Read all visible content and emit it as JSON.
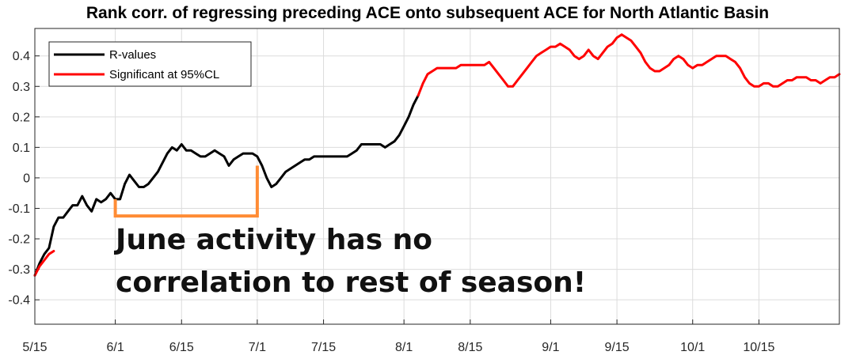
{
  "chart_data": {
    "type": "line",
    "title": "Rank corr. of regressing preceding ACE onto subsequent ACE for North Atlantic Basin",
    "xlabel": "",
    "ylabel": "",
    "ylim": [
      -0.48,
      0.49
    ],
    "xlim": [
      0,
      170
    ],
    "grid": true,
    "x_ticks": [
      {
        "x": 0,
        "label": "5/15"
      },
      {
        "x": 17,
        "label": "6/1"
      },
      {
        "x": 31,
        "label": "6/15"
      },
      {
        "x": 47,
        "label": "7/1"
      },
      {
        "x": 61,
        "label": "7/15"
      },
      {
        "x": 78,
        "label": "8/1"
      },
      {
        "x": 92,
        "label": "8/15"
      },
      {
        "x": 109,
        "label": "9/1"
      },
      {
        "x": 123,
        "label": "9/15"
      },
      {
        "x": 139,
        "label": "10/1"
      },
      {
        "x": 153,
        "label": "10/15"
      }
    ],
    "y_ticks": [
      {
        "y": 0.4,
        "label": "0.4"
      },
      {
        "y": 0.3,
        "label": "0.3"
      },
      {
        "y": 0.2,
        "label": "0.2"
      },
      {
        "y": 0.1,
        "label": "0.1"
      },
      {
        "y": 0,
        "label": "0"
      },
      {
        "y": -0.1,
        "label": "-0.1"
      },
      {
        "y": -0.2,
        "label": "-0.2"
      },
      {
        "y": -0.3,
        "label": "-0.3"
      },
      {
        "y": -0.4,
        "label": "-0.4"
      }
    ],
    "legend": {
      "position": "top-left",
      "entries": [
        {
          "label": "R-values",
          "color": "#000000"
        },
        {
          "label": "Significant at 95%CL",
          "color": "#ff0000"
        }
      ]
    },
    "series": [
      {
        "name": "R-values",
        "color": "#000000",
        "points": [
          [
            0,
            -0.32
          ],
          [
            1,
            -0.28
          ],
          [
            2,
            -0.25
          ],
          [
            3,
            -0.23
          ],
          [
            4,
            -0.16
          ],
          [
            5,
            -0.13
          ],
          [
            6,
            -0.13
          ],
          [
            7,
            -0.11
          ],
          [
            8,
            -0.09
          ],
          [
            9,
            -0.09
          ],
          [
            10,
            -0.06
          ],
          [
            11,
            -0.09
          ],
          [
            12,
            -0.11
          ],
          [
            13,
            -0.07
          ],
          [
            14,
            -0.08
          ],
          [
            15,
            -0.07
          ],
          [
            16,
            -0.05
          ],
          [
            17,
            -0.07
          ],
          [
            18,
            -0.07
          ],
          [
            19,
            -0.02
          ],
          [
            20,
            0.01
          ],
          [
            21,
            -0.01
          ],
          [
            22,
            -0.03
          ],
          [
            23,
            -0.03
          ],
          [
            24,
            -0.02
          ],
          [
            25,
            0.0
          ],
          [
            26,
            0.02
          ],
          [
            27,
            0.05
          ],
          [
            28,
            0.08
          ],
          [
            29,
            0.1
          ],
          [
            30,
            0.09
          ],
          [
            31,
            0.11
          ],
          [
            32,
            0.09
          ],
          [
            33,
            0.09
          ],
          [
            34,
            0.08
          ],
          [
            35,
            0.07
          ],
          [
            36,
            0.07
          ],
          [
            37,
            0.08
          ],
          [
            38,
            0.09
          ],
          [
            39,
            0.08
          ],
          [
            40,
            0.07
          ],
          [
            41,
            0.04
          ],
          [
            42,
            0.06
          ],
          [
            43,
            0.07
          ],
          [
            44,
            0.08
          ],
          [
            45,
            0.08
          ],
          [
            46,
            0.08
          ],
          [
            47,
            0.07
          ],
          [
            48,
            0.04
          ],
          [
            49,
            0.0
          ],
          [
            50,
            -0.03
          ],
          [
            51,
            -0.02
          ],
          [
            52,
            0.0
          ],
          [
            53,
            0.02
          ],
          [
            54,
            0.03
          ],
          [
            55,
            0.04
          ],
          [
            56,
            0.05
          ],
          [
            57,
            0.06
          ],
          [
            58,
            0.06
          ],
          [
            59,
            0.07
          ],
          [
            60,
            0.07
          ],
          [
            61,
            0.07
          ],
          [
            62,
            0.07
          ],
          [
            63,
            0.07
          ],
          [
            64,
            0.07
          ],
          [
            65,
            0.07
          ],
          [
            66,
            0.07
          ],
          [
            67,
            0.08
          ],
          [
            68,
            0.09
          ],
          [
            69,
            0.11
          ],
          [
            70,
            0.11
          ],
          [
            71,
            0.11
          ],
          [
            72,
            0.11
          ],
          [
            73,
            0.11
          ],
          [
            74,
            0.1
          ],
          [
            75,
            0.11
          ],
          [
            76,
            0.12
          ],
          [
            77,
            0.14
          ],
          [
            78,
            0.17
          ],
          [
            79,
            0.2
          ],
          [
            80,
            0.24
          ],
          [
            81,
            0.27
          ]
        ]
      },
      {
        "name": "Significant at 95%CL",
        "color": "#ff0000",
        "segments": [
          [
            [
              0,
              -0.32
            ],
            [
              1,
              -0.29
            ],
            [
              2,
              -0.27
            ],
            [
              3,
              -0.25
            ],
            [
              4,
              -0.24
            ]
          ],
          [
            [
              81,
              0.27
            ],
            [
              82,
              0.31
            ],
            [
              83,
              0.34
            ],
            [
              84,
              0.35
            ],
            [
              85,
              0.36
            ],
            [
              86,
              0.36
            ],
            [
              87,
              0.36
            ],
            [
              88,
              0.36
            ],
            [
              89,
              0.36
            ],
            [
              90,
              0.37
            ],
            [
              91,
              0.37
            ],
            [
              92,
              0.37
            ],
            [
              93,
              0.37
            ],
            [
              94,
              0.37
            ],
            [
              95,
              0.37
            ],
            [
              96,
              0.38
            ],
            [
              97,
              0.36
            ],
            [
              98,
              0.34
            ],
            [
              99,
              0.32
            ],
            [
              100,
              0.3
            ],
            [
              101,
              0.3
            ],
            [
              102,
              0.32
            ],
            [
              103,
              0.34
            ],
            [
              104,
              0.36
            ],
            [
              105,
              0.38
            ],
            [
              106,
              0.4
            ],
            [
              107,
              0.41
            ],
            [
              108,
              0.42
            ],
            [
              109,
              0.43
            ],
            [
              110,
              0.43
            ],
            [
              111,
              0.44
            ],
            [
              112,
              0.43
            ],
            [
              113,
              0.42
            ],
            [
              114,
              0.4
            ],
            [
              115,
              0.39
            ],
            [
              116,
              0.4
            ],
            [
              117,
              0.42
            ],
            [
              118,
              0.4
            ],
            [
              119,
              0.39
            ],
            [
              120,
              0.41
            ],
            [
              121,
              0.43
            ],
            [
              122,
              0.44
            ],
            [
              123,
              0.46
            ],
            [
              124,
              0.47
            ],
            [
              125,
              0.46
            ],
            [
              126,
              0.45
            ],
            [
              127,
              0.43
            ],
            [
              128,
              0.41
            ],
            [
              129,
              0.38
            ],
            [
              130,
              0.36
            ],
            [
              131,
              0.35
            ],
            [
              132,
              0.35
            ],
            [
              133,
              0.36
            ],
            [
              134,
              0.37
            ],
            [
              135,
              0.39
            ],
            [
              136,
              0.4
            ],
            [
              137,
              0.39
            ],
            [
              138,
              0.37
            ],
            [
              139,
              0.36
            ],
            [
              140,
              0.37
            ],
            [
              141,
              0.37
            ],
            [
              142,
              0.38
            ],
            [
              143,
              0.39
            ],
            [
              144,
              0.4
            ],
            [
              145,
              0.4
            ],
            [
              146,
              0.4
            ],
            [
              147,
              0.39
            ],
            [
              148,
              0.38
            ],
            [
              149,
              0.36
            ],
            [
              150,
              0.33
            ],
            [
              151,
              0.31
            ],
            [
              152,
              0.3
            ],
            [
              153,
              0.3
            ],
            [
              154,
              0.31
            ],
            [
              155,
              0.31
            ],
            [
              156,
              0.3
            ],
            [
              157,
              0.3
            ],
            [
              158,
              0.31
            ],
            [
              159,
              0.32
            ],
            [
              160,
              0.32
            ],
            [
              161,
              0.33
            ],
            [
              162,
              0.33
            ],
            [
              163,
              0.33
            ],
            [
              164,
              0.32
            ],
            [
              165,
              0.32
            ],
            [
              166,
              0.31
            ],
            [
              167,
              0.32
            ],
            [
              168,
              0.33
            ],
            [
              169,
              0.33
            ],
            [
              170,
              0.34
            ]
          ]
        ]
      }
    ],
    "annotations": [
      {
        "type": "bracket",
        "color": "#ff8c35",
        "x_start": 17,
        "x_end": 47,
        "y_bottom": -0.125,
        "y_left_top": -0.07,
        "y_right_top": 0.04
      },
      {
        "type": "text",
        "lines": [
          "June activity has no",
          "correlation to rest of season!"
        ],
        "color": "#111111"
      }
    ]
  }
}
